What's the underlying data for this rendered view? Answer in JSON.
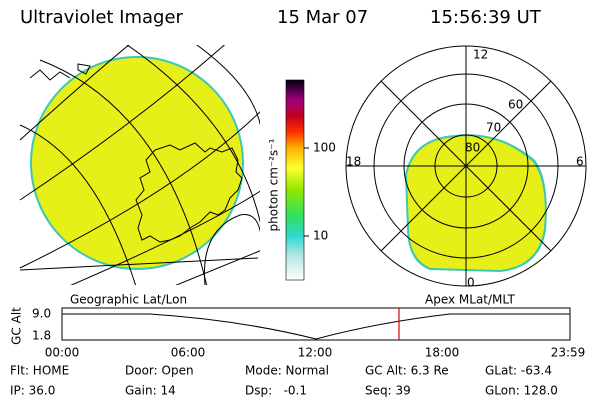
{
  "header": {
    "title": "Ultraviolet Imager",
    "date": "15 Mar 07",
    "time": "15:56:39 UT"
  },
  "colorbar": {
    "label": "photon cm⁻²s⁻¹",
    "ticks": [
      "100",
      "10"
    ]
  },
  "polar": {
    "clock_labels": [
      "12",
      "6",
      "0",
      "18"
    ],
    "lat_labels": [
      "60",
      "70",
      "80"
    ]
  },
  "timeline": {
    "left_label": "Geographic Lat/Lon",
    "right_label": "Apex MLat/MLT",
    "y_axis_label": "GC Alt",
    "y_ticks": [
      "9.0",
      "1.8"
    ],
    "x_ticks": [
      "00:00",
      "06:00",
      "12:00",
      "18:00",
      "23:59"
    ]
  },
  "info": [
    [
      "Flt: HOME",
      "Door: Open",
      "Mode: Normal",
      "GC Alt: 6.3 Re",
      "GLat: -63.4"
    ],
    [
      "IP: 36.0",
      "Gain: 14",
      "Dsp:   -0.1",
      "Seq: 39",
      "GLon: 128.0"
    ]
  ]
}
